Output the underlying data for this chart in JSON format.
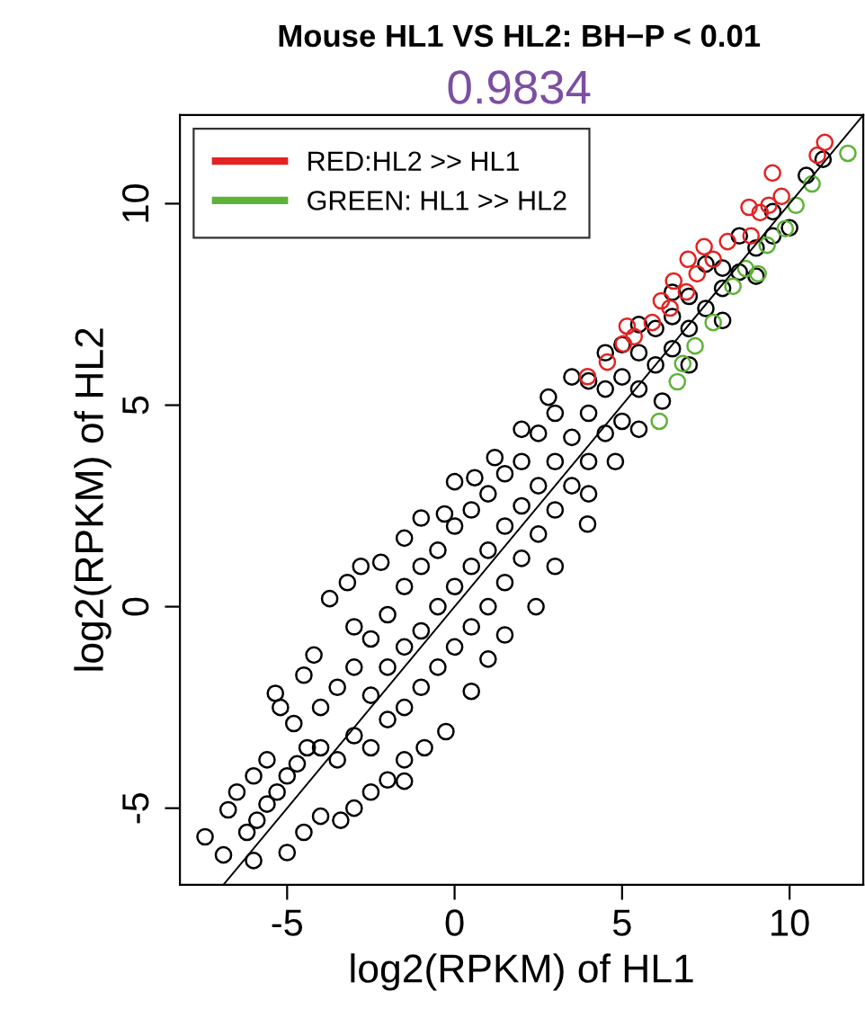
{
  "chart_data": {
    "type": "scatter",
    "title": "Mouse HL1 VS HL2: BH−P < 0.01",
    "subtitle": "0.9834",
    "xlabel": "log2(RPKM) of HL1",
    "ylabel": "log2(RPKM) of HL2",
    "xlim": [
      -8.2,
      12.2
    ],
    "ylim": [
      -6.9,
      12.2
    ],
    "xticks": [
      -5,
      0,
      5,
      10
    ],
    "yticks": [
      -5,
      0,
      5,
      10
    ],
    "grid": false,
    "legend": "top left",
    "marker": "circle",
    "series": [
      {
        "color": "#000000",
        "x": [
          -7.45,
          -6.9,
          -6.76,
          -6.5,
          -6.0,
          -5.6,
          -5.35,
          -5.2,
          -4.8,
          -4.5,
          -4.2,
          -3.73,
          -3.2,
          -2.8,
          -2.2,
          -1.5,
          -1.0,
          -0.3,
          0.0,
          0.6,
          1.2,
          2.0,
          2.8,
          3.5,
          4.5,
          5.5,
          6.5,
          7.5,
          8.5,
          9.5,
          10.5,
          11.0,
          -6.0,
          -5.0,
          -4.5,
          -4.0,
          -3.4,
          -3.0,
          -2.5,
          -2.0,
          -1.5,
          -1.5,
          -0.9,
          -0.26,
          0.5,
          1.0,
          1.5,
          2.43,
          3.0,
          3.97,
          4.0,
          4.8,
          5.5,
          6.2,
          7.0,
          8.0,
          9.0,
          10.0,
          -6.2,
          -5.9,
          -5.6,
          -5.3,
          -5.0,
          -4.7,
          -4.4,
          -4,
          -4,
          -3.5,
          -3.5,
          -3,
          -3,
          -3,
          -2.5,
          -2.5,
          -2.5,
          -2,
          -2,
          -2,
          -1.5,
          -1.5,
          -1.5,
          -1,
          -1,
          -1,
          -0.5,
          -0.5,
          -0.5,
          0,
          0,
          0,
          0.5,
          0.5,
          0.5,
          1,
          1,
          1,
          1.5,
          1.5,
          1.5,
          2,
          2,
          2,
          2.5,
          2.5,
          2.5,
          3,
          3,
          3,
          3.5,
          3.5,
          4,
          4,
          4,
          4.5,
          4.5,
          5,
          5,
          5,
          5.5,
          5.5,
          6,
          6,
          6.5,
          6.5,
          7,
          7,
          7.5,
          8,
          8,
          8.5,
          9,
          9.5
        ],
        "values": [
          -5.71,
          -6.16,
          -5.04,
          -4.6,
          -4.2,
          -3.8,
          -2.15,
          -2.5,
          -2.9,
          -1.7,
          -1.2,
          0.2,
          0.6,
          1.0,
          1.1,
          1.7,
          2.2,
          2.3,
          3.1,
          3.2,
          3.7,
          4.4,
          5.2,
          5.7,
          6.3,
          7.0,
          7.8,
          8.5,
          9.2,
          9.8,
          10.7,
          11.1,
          -6.3,
          -6.1,
          -5.6,
          -5.2,
          -5.3,
          -5.0,
          -4.6,
          -4.3,
          -4.33,
          -3.8,
          -3.5,
          -3.1,
          -2.1,
          -1.3,
          -0.7,
          0.0,
          1.0,
          2.05,
          2.8,
          3.6,
          4.4,
          5.1,
          6.0,
          7.1,
          8.2,
          9.4,
          -5.6,
          -5.3,
          -4.9,
          -4.6,
          -4.2,
          -3.9,
          -3.5,
          -3.5,
          -2.5,
          -3.8,
          -2.0,
          -3.2,
          -1.5,
          -0.5,
          -3.5,
          -2.2,
          -0.8,
          -2.8,
          -1.5,
          -0.2,
          -2.5,
          -1.0,
          0.5,
          -2.0,
          -0.6,
          1.0,
          -1.5,
          0,
          1.4,
          -1.0,
          0.5,
          2.0,
          -0.5,
          1.0,
          2.4,
          0.0,
          1.4,
          2.8,
          0.6,
          2.0,
          3.3,
          1.2,
          2.5,
          3.6,
          1.8,
          3.0,
          4.3,
          2.4,
          3.6,
          4.8,
          3.0,
          4.2,
          3.6,
          4.8,
          5.6,
          4.3,
          5.4,
          4.6,
          5.7,
          6.5,
          5.4,
          6.3,
          6.0,
          6.9,
          6.4,
          7.2,
          6.9,
          7.7,
          7.4,
          7.9,
          8.4,
          8.3,
          8.9,
          9.2
        ]
      },
      {
        "type": "line",
        "marker": "none",
        "color": "#000000",
        "x": [
          -6.9,
          12.2
        ],
        "values": [
          -6.9,
          12.2
        ]
      },
      {
        "name": "RED:HL2 >> HL1",
        "color": "#e32222",
        "x": [
          11.05,
          10.83,
          9.49,
          9.76,
          9.38,
          8.79,
          9.12,
          8.85,
          8.15,
          7.45,
          6.97,
          7.72,
          7.24,
          6.54,
          6.92,
          6.17,
          6.43,
          5.9,
          5.15,
          5.36,
          5.04,
          4.56,
          3.97
        ],
        "values": [
          11.52,
          11.2,
          10.76,
          10.18,
          9.96,
          9.91,
          9.78,
          9.2,
          9.06,
          8.93,
          8.62,
          8.62,
          8.26,
          8.08,
          7.81,
          7.59,
          7.41,
          7.05,
          6.96,
          6.7,
          6.52,
          6.07,
          5.71
        ]
      },
      {
        "name": "GREEN: HL1 >> HL2",
        "color": "#5cb336",
        "x": [
          11.74,
          10.67,
          10.19,
          9.87,
          9.33,
          9.06,
          8.69,
          8.31,
          7.72,
          7.18,
          6.81,
          6.65,
          6.11
        ],
        "values": [
          11.25,
          10.49,
          9.96,
          9.38,
          8.97,
          8.26,
          8.39,
          7.95,
          7.05,
          6.47,
          6.03,
          5.58,
          4.6
        ]
      }
    ]
  }
}
